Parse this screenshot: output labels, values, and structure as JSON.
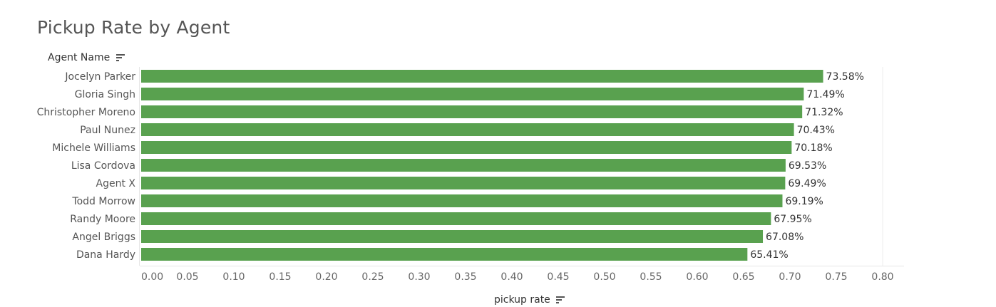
{
  "chart_data": {
    "type": "bar",
    "orientation": "horizontal",
    "title": "Pickup Rate by Agent",
    "row_header": "Agent Name",
    "xlabel": "pickup rate",
    "categories": [
      "Jocelyn Parker",
      "Gloria Singh",
      "Christopher Moreno",
      "Paul Nunez",
      "Michele Williams",
      "Lisa Cordova",
      "Agent X",
      "Todd Morrow",
      "Randy Moore",
      "Angel Briggs",
      "Dana Hardy"
    ],
    "values": [
      0.7358,
      0.7149,
      0.7132,
      0.7043,
      0.7018,
      0.6953,
      0.6949,
      0.6919,
      0.6795,
      0.6708,
      0.6541
    ],
    "value_labels": [
      "73.58%",
      "71.49%",
      "71.32%",
      "70.43%",
      "70.18%",
      "69.53%",
      "69.49%",
      "69.19%",
      "67.95%",
      "67.08%",
      "65.41%"
    ],
    "xlim": [
      0,
      0.8
    ],
    "xticks": [
      0.0,
      0.05,
      0.1,
      0.15,
      0.2,
      0.25,
      0.3,
      0.35,
      0.4,
      0.45,
      0.5,
      0.55,
      0.6,
      0.65,
      0.7,
      0.75,
      0.8
    ],
    "xtick_labels": [
      "0.00",
      "0.05",
      "0.10",
      "0.15",
      "0.20",
      "0.25",
      "0.30",
      "0.35",
      "0.40",
      "0.45",
      "0.50",
      "0.55",
      "0.60",
      "0.65",
      "0.70",
      "0.75",
      "0.80"
    ],
    "grid": true,
    "bar_color": "#59a14f",
    "icons": {
      "row_sort": "sort-descending-icon",
      "axis_sort": "sort-descending-icon"
    }
  }
}
